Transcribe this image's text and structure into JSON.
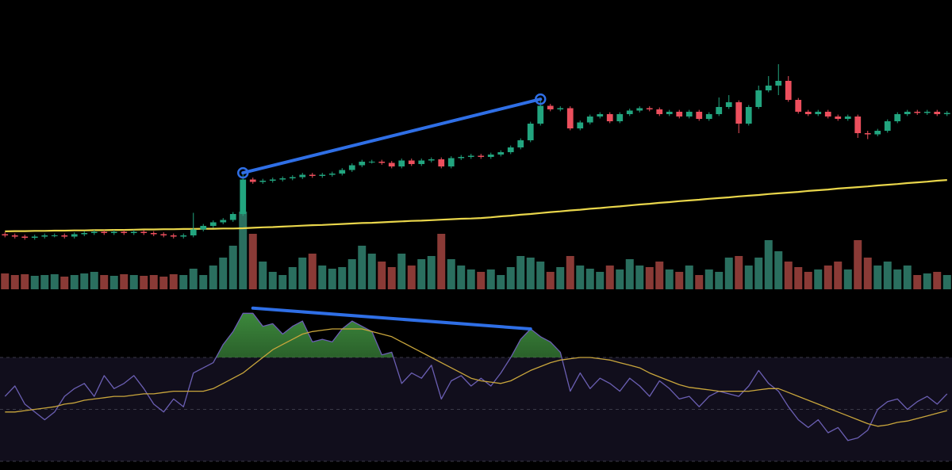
{
  "chart_data": {
    "type": "candlestick",
    "up_color": "#22a57f",
    "down_color": "#ec4f5d",
    "volume_up_color": "#2a6f5f",
    "volume_down_color": "#8a3a36",
    "ma_color": "#e9d64b",
    "rsi_color": "#6b5fb3",
    "rsi_ma_color": "#c9a63c",
    "rsi_fill_color": "#3f8f3f",
    "rsi_band_color": "#110e1c",
    "ylim": [
      0,
      100
    ],
    "volume_ylim": [
      0,
      100
    ],
    "rsi_levels": [
      70,
      50,
      30
    ],
    "open": [
      21.5,
      21,
      20.5,
      20,
      20.5,
      21,
      21,
      20.5,
      21.5,
      22,
      22.5,
      22,
      22.5,
      22,
      22.5,
      22,
      21.5,
      21,
      20.5,
      21,
      23.5,
      25,
      26.5,
      27.5,
      30,
      44.5,
      43.5,
      44,
      44.5,
      45,
      45.5,
      46.5,
      46,
      46.5,
      47,
      48.5,
      50.5,
      52,
      52,
      51.5,
      50,
      52.5,
      51,
      52.5,
      53,
      50,
      53.5,
      54,
      54.5,
      54,
      55,
      56,
      58,
      61,
      68,
      75.5,
      74,
      74.5,
      66,
      68.5,
      71,
      72,
      69,
      72,
      73.5,
      74.5,
      74,
      72,
      73,
      71,
      73,
      70,
      72,
      75,
      77,
      68,
      75,
      82,
      84,
      86,
      78,
      73,
      72,
      73,
      71,
      70,
      71,
      64,
      63.5,
      65,
      69,
      72,
      73,
      72.5,
      73,
      72
    ],
    "high": [
      22.3,
      21.8,
      21.3,
      21.3,
      21.8,
      21.8,
      21.8,
      22.3,
      22.8,
      23.3,
      23.3,
      23.3,
      23.3,
      23.3,
      23.3,
      22.8,
      22.3,
      21.8,
      21.8,
      30.5,
      25.8,
      27.3,
      28.3,
      30.8,
      47,
      45.3,
      44.8,
      45.3,
      45.8,
      46.3,
      47.3,
      47.3,
      47.3,
      47.8,
      49.3,
      51.3,
      52.8,
      52.8,
      52.8,
      52.3,
      53.3,
      53.3,
      53.3,
      53.8,
      53.8,
      54.3,
      54.8,
      55.3,
      55.3,
      55.8,
      56.8,
      58.8,
      61.8,
      68.8,
      78,
      76.3,
      75.3,
      75.3,
      69.3,
      71.8,
      72.8,
      72.8,
      72.8,
      74.3,
      75.3,
      75.3,
      74.8,
      73.8,
      73.8,
      73.8,
      73.8,
      72.8,
      79,
      80,
      77.8,
      75.8,
      84,
      88,
      93,
      88,
      78.8,
      73.8,
      73.8,
      73.8,
      71.8,
      71.8,
      71.8,
      65,
      65.8,
      69.8,
      72.8,
      73.8,
      73.8,
      73.8,
      73.8,
      73.3
    ],
    "low": [
      20.2,
      19.7,
      19.2,
      19.2,
      19.7,
      20.2,
      19.7,
      19.7,
      20.7,
      21.2,
      21.2,
      21.2,
      21.2,
      21.2,
      21.2,
      20.7,
      20.2,
      19.7,
      19.7,
      20.2,
      22.7,
      24.2,
      25.7,
      26.7,
      29.2,
      42.7,
      42.7,
      43.2,
      43.7,
      44.2,
      44.7,
      45.2,
      45.2,
      45.7,
      46.2,
      47.7,
      49.7,
      51.2,
      50.7,
      49.2,
      49.2,
      50.2,
      50.2,
      51.7,
      49.2,
      49.2,
      52.7,
      53.2,
      53.2,
      53.2,
      54.2,
      55.2,
      57.2,
      60.2,
      67.2,
      73.2,
      73.2,
      65.2,
      65.2,
      67.7,
      70.2,
      68.2,
      68.2,
      71.2,
      72.7,
      73.2,
      71.2,
      71.2,
      70.2,
      70.2,
      69.2,
      69.2,
      71.2,
      74.2,
      64,
      67.2,
      74.2,
      81.2,
      80,
      77.2,
      72.2,
      71.2,
      71.2,
      70.2,
      69.2,
      69.2,
      62,
      61.5,
      62.7,
      64.2,
      68.2,
      71.2,
      71.7,
      71.7,
      71.2,
      71.2
    ],
    "close": [
      21,
      20.5,
      20,
      20.5,
      21,
      21,
      20.5,
      21.5,
      22,
      22.5,
      22,
      22.5,
      22,
      22.5,
      22,
      21.5,
      21,
      20.5,
      21,
      23.5,
      25,
      26.5,
      27.5,
      30,
      44.5,
      43.5,
      44,
      44.5,
      45,
      45.5,
      46.5,
      46,
      46.5,
      47,
      48.5,
      50.5,
      52,
      52,
      51.5,
      50,
      52.5,
      51,
      52.5,
      53,
      50,
      53.5,
      54,
      54.5,
      54,
      55,
      56,
      58,
      61,
      68,
      75.5,
      74,
      74.5,
      66,
      68.5,
      71,
      72,
      69,
      72,
      73.5,
      74.5,
      74,
      72,
      73,
      71,
      73,
      70,
      72,
      75,
      77,
      68,
      75,
      82,
      84,
      86,
      78,
      73,
      72,
      73,
      71,
      70,
      71,
      64,
      63.5,
      65,
      69,
      72,
      73,
      72.5,
      73,
      72,
      72.5
    ],
    "ma": [
      22.7,
      22.8,
      22.8,
      22.9,
      22.9,
      23.0,
      23.0,
      23.1,
      23.1,
      23.2,
      23.2,
      23.3,
      23.3,
      23.4,
      23.5,
      23.5,
      23.6,
      23.6,
      23.7,
      23.7,
      23.8,
      23.8,
      23.9,
      23.9,
      24.0,
      24.2,
      24.4,
      24.5,
      24.7,
      24.9,
      25.1,
      25.3,
      25.4,
      25.6,
      25.8,
      26.0,
      26.2,
      26.3,
      26.5,
      26.7,
      26.9,
      27.1,
      27.2,
      27.4,
      27.6,
      27.8,
      28.0,
      28.1,
      28.3,
      28.6,
      29.0,
      29.3,
      29.7,
      30.0,
      30.4,
      30.8,
      31.1,
      31.5,
      31.8,
      32.2,
      32.5,
      32.9,
      33.2,
      33.6,
      34.0,
      34.3,
      34.7,
      35.0,
      35.4,
      35.7,
      36.0,
      36.4,
      36.7,
      37.0,
      37.4,
      37.7,
      38.0,
      38.4,
      38.7,
      39.0,
      39.3,
      39.7,
      40.0,
      40.3,
      40.7,
      41.0,
      41.3,
      41.6,
      42.0,
      42.3,
      42.6,
      43.0,
      43.3,
      43.6,
      44.0,
      44.3
    ],
    "volume": [
      20,
      18,
      19,
      17,
      18,
      19,
      16,
      18,
      20,
      22,
      18,
      17,
      19,
      18,
      17,
      18,
      16,
      19,
      18,
      26,
      18,
      30,
      40,
      55,
      98,
      70,
      35,
      22,
      18,
      28,
      40,
      45,
      30,
      26,
      28,
      38,
      55,
      45,
      35,
      28,
      45,
      30,
      38,
      42,
      70,
      38,
      30,
      25,
      22,
      25,
      18,
      28,
      42,
      40,
      35,
      22,
      28,
      42,
      30,
      26,
      22,
      30,
      25,
      38,
      30,
      28,
      35,
      25,
      22,
      30,
      18,
      25,
      22,
      40,
      42,
      30,
      40,
      62,
      48,
      35,
      28,
      22,
      25,
      30,
      35,
      25,
      62,
      40,
      30,
      35,
      25,
      30,
      18,
      20,
      22,
      18
    ],
    "rsi": [
      55,
      59,
      52,
      49,
      46,
      49,
      55,
      58,
      60,
      55,
      63,
      58,
      60,
      63,
      58,
      52,
      49,
      54,
      51,
      64,
      66,
      68,
      75,
      80,
      87,
      87,
      82,
      83,
      79,
      82,
      84,
      76,
      77,
      76,
      81,
      84,
      82,
      80,
      71,
      72,
      60,
      64,
      62,
      67,
      54,
      61,
      63,
      59,
      62,
      59,
      64,
      70,
      77,
      81,
      78,
      76,
      72,
      57,
      64,
      58,
      62,
      60,
      57,
      62,
      59,
      55,
      61,
      58,
      54,
      55,
      51,
      55,
      57,
      56,
      55,
      59,
      65,
      60,
      57,
      51,
      46,
      43,
      46,
      41,
      43,
      38,
      39,
      42,
      50,
      53,
      54,
      50,
      53,
      55,
      52,
      56
    ],
    "rsi_ma": [
      49,
      49,
      49.5,
      50,
      50.5,
      51,
      52,
      52.5,
      53.5,
      54,
      54.5,
      55,
      55,
      55.5,
      56,
      56,
      56.5,
      57,
      57,
      57,
      57,
      58,
      60,
      62,
      64,
      67,
      70,
      73,
      75,
      77,
      79,
      80,
      80.5,
      81,
      81,
      81,
      81,
      80,
      79,
      78,
      76,
      74,
      72,
      70,
      68,
      66,
      64,
      62,
      61,
      60.5,
      60,
      61,
      63,
      65,
      66.5,
      68,
      69,
      69.5,
      70,
      70,
      69.5,
      69,
      68,
      67,
      66,
      64,
      62.5,
      61,
      59.5,
      58.5,
      58,
      57.5,
      57,
      57,
      57,
      57,
      57.5,
      58,
      58,
      56.5,
      55,
      53.5,
      52,
      50.5,
      49,
      47.5,
      46,
      44.5,
      43.5,
      44,
      45,
      45.5,
      46.5,
      47.5,
      48.5,
      49.5
    ],
    "annotations": [
      {
        "panel": "price",
        "color": "#2f6fe6",
        "points": [
          [
            24,
            47.3
          ],
          [
            54,
            78.3
          ]
        ]
      },
      {
        "panel": "rsi",
        "color": "#2f6fe6",
        "points": [
          [
            25,
            89
          ],
          [
            53,
            81
          ]
        ]
      }
    ]
  }
}
